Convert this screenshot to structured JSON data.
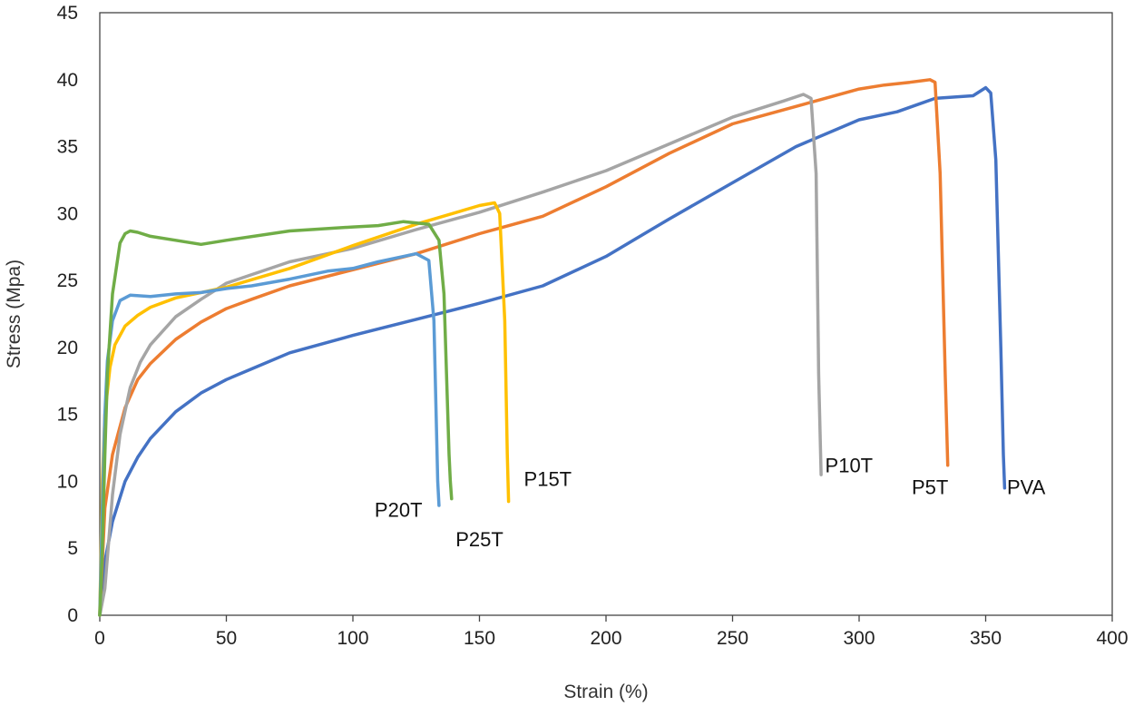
{
  "chart_data": {
    "type": "line",
    "title": "",
    "xlabel": "Strain (%)",
    "ylabel": "Stress (Mpa)",
    "xlim": [
      0,
      400
    ],
    "ylim": [
      0,
      45
    ],
    "xticks": [
      0,
      50,
      100,
      150,
      200,
      250,
      300,
      350,
      400
    ],
    "yticks": [
      0,
      5,
      10,
      15,
      20,
      25,
      30,
      35,
      40,
      45
    ],
    "grid": false,
    "legend": "none",
    "series": [
      {
        "name": "PVA",
        "label": "PVA",
        "color": "#4472C4",
        "x": [
          0,
          2,
          5,
          10,
          15,
          20,
          30,
          40,
          50,
          60,
          75,
          100,
          125,
          150,
          175,
          200,
          225,
          250,
          275,
          300,
          315,
          330,
          345,
          350,
          352,
          354,
          356,
          357,
          357.5
        ],
        "y": [
          0,
          4,
          7,
          10,
          11.8,
          13.2,
          15.2,
          16.6,
          17.6,
          18.4,
          19.6,
          20.9,
          22.1,
          23.3,
          24.6,
          26.8,
          29.6,
          32.3,
          35,
          37,
          37.6,
          38.6,
          38.8,
          39.4,
          39,
          34,
          20,
          12,
          9.5
        ]
      },
      {
        "name": "P5T",
        "label": "P5T",
        "color": "#ED7D31",
        "x": [
          0,
          2,
          5,
          10,
          15,
          20,
          30,
          40,
          50,
          60,
          75,
          100,
          125,
          150,
          175,
          200,
          225,
          250,
          275,
          300,
          310,
          320,
          328,
          330,
          332,
          334,
          335
        ],
        "y": [
          0,
          8,
          12,
          15.5,
          17.6,
          18.8,
          20.6,
          21.9,
          22.9,
          23.6,
          24.6,
          25.8,
          27,
          28.5,
          29.8,
          32,
          34.5,
          36.7,
          38,
          39.3,
          39.6,
          39.8,
          40,
          39.8,
          33,
          18,
          11.2
        ]
      },
      {
        "name": "P10T",
        "label": "P10T",
        "color": "#A5A5A5",
        "x": [
          0,
          2,
          5,
          8,
          12,
          16,
          20,
          30,
          40,
          50,
          75,
          100,
          125,
          150,
          175,
          200,
          225,
          250,
          270,
          278,
          281,
          283,
          284,
          285
        ],
        "y": [
          0,
          2,
          9,
          13.5,
          17,
          18.9,
          20.2,
          22.3,
          23.6,
          24.8,
          26.4,
          27.4,
          28.8,
          30.1,
          31.6,
          33.2,
          35.2,
          37.2,
          38.4,
          38.9,
          38.6,
          33,
          18,
          10.5
        ]
      },
      {
        "name": "P15T",
        "label": "P15T",
        "color": "#FFC000",
        "x": [
          0,
          1,
          2,
          4,
          6,
          10,
          15,
          20,
          30,
          50,
          75,
          100,
          125,
          150,
          156,
          158,
          160,
          161,
          161.5
        ],
        "y": [
          0,
          10,
          15,
          18.5,
          20.2,
          21.6,
          22.4,
          23,
          23.7,
          24.5,
          25.9,
          27.6,
          29.2,
          30.6,
          30.8,
          30,
          22,
          12,
          8.5
        ]
      },
      {
        "name": "P20T",
        "label": "P20T",
        "color": "#5B9BD5",
        "x": [
          0,
          1,
          2,
          3,
          5,
          8,
          12,
          20,
          30,
          40,
          50,
          60,
          75,
          90,
          100,
          110,
          120,
          125,
          130,
          132,
          133,
          133.5,
          134
        ],
        "y": [
          0,
          8,
          15,
          19,
          22,
          23.5,
          23.9,
          23.8,
          24,
          24.1,
          24.4,
          24.6,
          25.1,
          25.7,
          25.9,
          26.4,
          26.8,
          27,
          26.5,
          22,
          14,
          10,
          8.2
        ]
      },
      {
        "name": "P25T",
        "label": "P25T",
        "color": "#70AD47",
        "x": [
          0,
          1,
          2,
          3,
          5,
          8,
          10,
          12,
          15,
          20,
          30,
          40,
          50,
          75,
          100,
          110,
          120,
          130,
          134,
          136,
          137,
          138,
          138.5,
          139
        ],
        "y": [
          0,
          5,
          12,
          18,
          24,
          27.8,
          28.5,
          28.7,
          28.6,
          28.3,
          28,
          27.7,
          28,
          28.7,
          29,
          29.1,
          29.4,
          29.2,
          28,
          24,
          18,
          12,
          10,
          8.7
        ]
      }
    ],
    "annotations": [
      {
        "text": "PVA",
        "series": "PVA",
        "x": 366,
        "y": 9.6
      },
      {
        "text": "P5T",
        "series": "P5T",
        "x": 328,
        "y": 9.6
      },
      {
        "text": "P10T",
        "series": "P10T",
        "x": 296,
        "y": 11.2
      },
      {
        "text": "P15T",
        "series": "P15T",
        "x": 177,
        "y": 10.2
      },
      {
        "text": "P20T",
        "series": "P20T",
        "x": 118,
        "y": 7.9
      },
      {
        "text": "P25T",
        "series": "P25T",
        "x": 150,
        "y": 5.7
      }
    ]
  }
}
